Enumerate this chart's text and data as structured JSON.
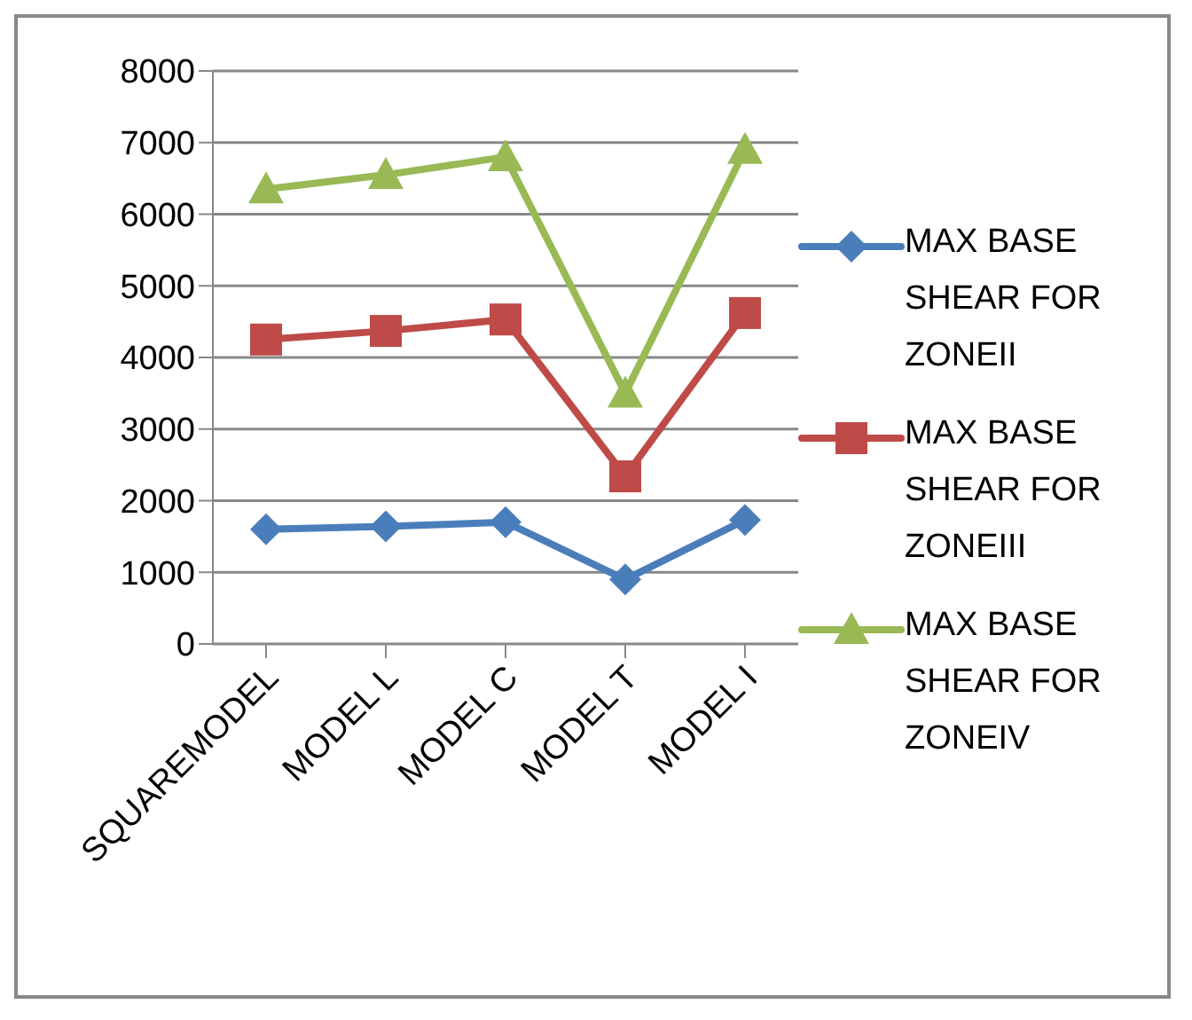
{
  "chart_data": {
    "type": "line",
    "categories": [
      "SQUAREMODEL",
      "MODEL L",
      "MODEL  C",
      "MODEL  T",
      "MODEL I"
    ],
    "series": [
      {
        "name": "MAX BASE SHEAR FOR ZONEII",
        "color": "#4a7ebb",
        "marker": "diamond",
        "values": [
          1600,
          1640,
          1700,
          900,
          1730
        ]
      },
      {
        "name": "MAX BASE SHEAR FOR ZONEIII",
        "color": "#be4b48",
        "marker": "square",
        "values": [
          4250,
          4370,
          4530,
          2340,
          4620
        ]
      },
      {
        "name": "MAX BASE SHEAR FOR ZONEIV",
        "color": "#98b954",
        "marker": "triangle",
        "values": [
          6350,
          6550,
          6800,
          3500,
          6900
        ]
      }
    ],
    "ylim": [
      0,
      8000
    ],
    "yticks": [
      0,
      1000,
      2000,
      3000,
      4000,
      5000,
      6000,
      7000,
      8000
    ],
    "grid": "y",
    "legend": "right"
  }
}
